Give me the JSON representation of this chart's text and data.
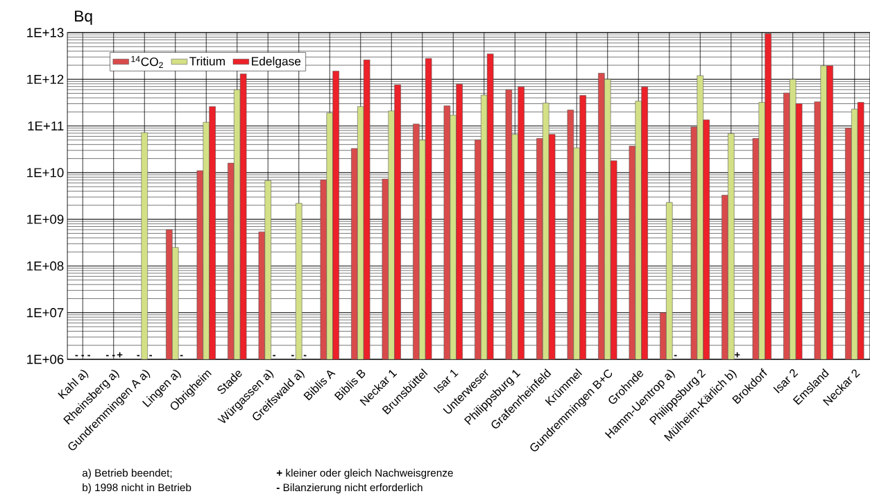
{
  "chart_data": {
    "type": "bar",
    "ylabel": "Bq",
    "log": "y",
    "grid": true,
    "legend": "top left",
    "categories": [
      "Kahl a)",
      "Rheinsberg a)",
      "Gundremmingen A a)",
      "Lingen a)",
      "Obrigheim",
      "Stade",
      "Würgassen a)",
      "Greifswald a)",
      "Biblis A",
      "Biblis B",
      "Neckar 1",
      "Brunsbüttel",
      "Isar 1",
      "Unterweser",
      "Philippsburg 1",
      "Grafenrheinfeld",
      "Krümmel",
      "Gundremmingen B+C",
      "Grohnde",
      "Hamm-Uentrop a)",
      "Philippsburg 2",
      "Mülheim-Kärlich b)",
      "Brokdorf",
      "Isar 2",
      "Emsland",
      "Neckar 2"
    ],
    "ylim": [
      1000000.0,
      10000000000000.0
    ],
    "yticks": [
      {
        "value": 1000000.0,
        "label": "1E+06"
      },
      {
        "value": 10000000.0,
        "label": "1E+07"
      },
      {
        "value": 100000000.0,
        "label": "1E+08"
      },
      {
        "value": 1000000000.0,
        "label": "1E+09"
      },
      {
        "value": 10000000000.0,
        "label": "1E+10"
      },
      {
        "value": 100000000000.0,
        "label": "1E+11"
      },
      {
        "value": 1000000000000.0,
        "label": "1E+12"
      },
      {
        "value": 10000000000000.0,
        "label": "1E+13"
      }
    ],
    "series": [
      {
        "name": "$^{14}$CO$_{2}$",
        "color": "#d94b4b",
        "values": [
          null,
          null,
          null,
          600000000.0,
          11000000000.0,
          16000000000.0,
          540000000.0,
          null,
          7000000000.0,
          33000000000.0,
          7300000000.0,
          110000000000.0,
          270000000000.0,
          50000000000.0,
          600000000000.0,
          54000000000.0,
          220000000000.0,
          1350000000000.0,
          37000000000.0,
          10000000.0,
          95000000000.0,
          3300000000.0,
          54000000000.0,
          510000000000.0,
          330000000000.0,
          90000000000.0
        ],
        "value_labels": [
          "-",
          "-",
          "-",
          null,
          null,
          null,
          null,
          "-",
          null,
          null,
          null,
          null,
          null,
          null,
          null,
          null,
          null,
          null,
          null,
          null,
          null,
          null,
          null,
          null,
          null,
          null
        ]
      },
      {
        "name": "Tritium",
        "color": "#d4e085",
        "values": [
          null,
          null,
          72000000000.0,
          250000000.0,
          120000000000.0,
          600000000000.0,
          6800000000.0,
          2200000000.0,
          190000000000.0,
          260000000000.0,
          210000000000.0,
          50000000000.0,
          170000000000.0,
          460000000000.0,
          66000000000.0,
          310000000000.0,
          34000000000.0,
          1000000000000.0,
          340000000000.0,
          2300000000.0,
          1200000000000.0,
          69000000000.0,
          320000000000.0,
          1000000000000.0,
          1950000000000.0,
          230000000000.0
        ],
        "value_labels": [
          "-",
          "-",
          null,
          null,
          null,
          null,
          null,
          null,
          null,
          null,
          null,
          null,
          null,
          null,
          null,
          null,
          null,
          null,
          null,
          null,
          null,
          null,
          null,
          null,
          null,
          null
        ]
      },
      {
        "name": "Edelgase",
        "color": "#ec2129",
        "values": [
          null,
          null,
          null,
          null,
          260000000000.0,
          1300000000000.0,
          null,
          null,
          1500000000000.0,
          2600000000000.0,
          760000000000.0,
          2800000000000.0,
          790000000000.0,
          3500000000000.0,
          690000000000.0,
          66000000000.0,
          450000000000.0,
          18000000000.0,
          690000000000.0,
          null,
          135000000000.0,
          null,
          9500000000000.0,
          300000000000.0,
          1950000000000.0,
          320000000000.0
        ],
        "value_labels": [
          "-",
          "+",
          "-",
          "-",
          null,
          null,
          "-",
          "-",
          null,
          null,
          null,
          null,
          null,
          null,
          null,
          null,
          null,
          null,
          null,
          "-",
          null,
          "+",
          null,
          null,
          null,
          null
        ]
      }
    ],
    "annotations": [
      "a) Betrieb beendet;",
      "b) 1998 nicht in Betrieb",
      "**+** kleiner oder gleich Nachweisgrenze",
      "**-** Bilanzierung nicht erforderlich"
    ]
  }
}
